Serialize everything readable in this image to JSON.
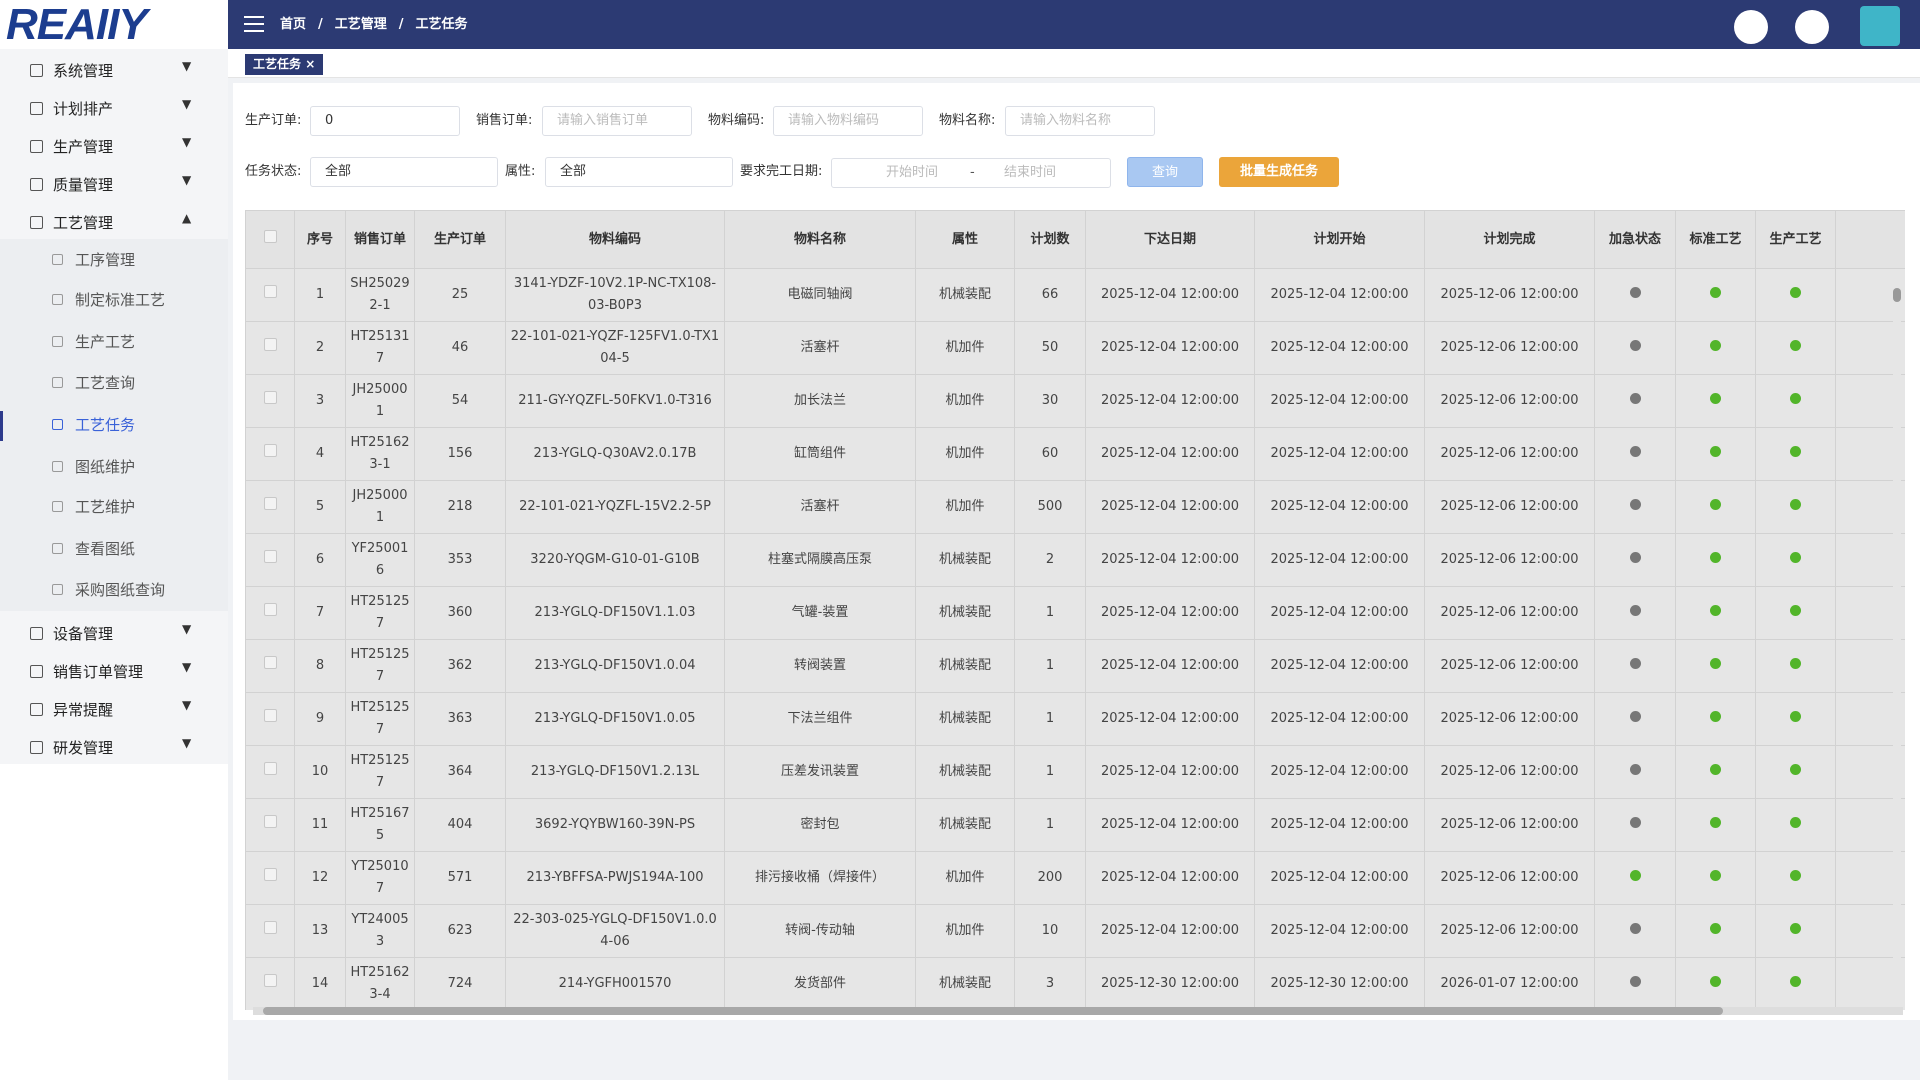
{
  "logo": "REAIIY",
  "menu": [
    "系统管理",
    "计划排产",
    "生产管理",
    "质量管理",
    "工艺管理",
    "设备管理",
    "销售订单管理",
    "异常提醒",
    "研发管理"
  ],
  "submenu": [
    "工序管理",
    "制定标准工艺",
    "生产工艺",
    "工艺查询",
    "工艺任务",
    "图纸维护",
    "工艺维护",
    "查看图纸",
    "采购图纸查询"
  ],
  "breadcrumb": {
    "items": [
      "首页",
      "工艺管理",
      "工艺任务"
    ],
    "separator": "/"
  },
  "tab": {
    "label": "工艺任务",
    "close": "×"
  },
  "filters": {
    "order": {
      "label": "生产订单:",
      "value": "0"
    },
    "sales": {
      "label": "销售订单:",
      "placeholder": "请输入销售订单"
    },
    "code": {
      "label": "物料编码:",
      "placeholder": "请输入物料编码"
    },
    "name": {
      "label": "物料名称:",
      "placeholder": "请输入物料名称"
    },
    "status": {
      "label": "任务状态:",
      "value": "全部"
    },
    "attr": {
      "label": "属性:",
      "value": "全部"
    },
    "date": {
      "label": "要求完工日期:",
      "start": "开始时间",
      "sep": "-",
      "end": "结束时间"
    },
    "search": "查询",
    "batch": "批量生成任务"
  },
  "table": {
    "headers": [
      "序号",
      "销售订单",
      "生产订单",
      "物料编码",
      "物料名称",
      "属性",
      "计划数",
      "下达日期",
      "计划开始",
      "计划完成",
      "加急状态",
      "标准工艺",
      "生产工艺"
    ],
    "rows": [
      [
        1,
        "SH250292-1",
        25,
        "3141-YDZF-10V2.1P-NC-TX108-03-B0P3",
        "电磁同轴阀",
        "机械装配",
        66,
        "2025-12-04 12:00:00",
        "2025-12-04 12:00:00",
        "2025-12-06 12:00:00"
      ],
      [
        2,
        "HT251317",
        46,
        "22-101-021-YQZF-125FV1.0-TX104-5",
        "活塞杆",
        "机加件",
        50,
        "2025-12-04 12:00:00",
        "2025-12-04 12:00:00",
        "2025-12-06 12:00:00"
      ],
      [
        3,
        "JH250001",
        54,
        "211-GY-YQZFL-50FKV1.0-T316",
        "加长法兰",
        "机加件",
        30,
        "2025-12-04 12:00:00",
        "2025-12-04 12:00:00",
        "2025-12-06 12:00:00"
      ],
      [
        4,
        "HT251623-1",
        156,
        "213-YGLQ-Q30AV2.0.17B",
        "缸筒组件",
        "机加件",
        60,
        "2025-12-04 12:00:00",
        "2025-12-04 12:00:00",
        "2025-12-06 12:00:00"
      ],
      [
        5,
        "JH250001",
        218,
        "22-101-021-YQZFL-15V2.2-5P",
        "活塞杆",
        "机加件",
        500,
        "2025-12-04 12:00:00",
        "2025-12-04 12:00:00",
        "2025-12-06 12:00:00"
      ],
      [
        6,
        "YF250016",
        353,
        "3220-YQGM-G10-01-G10B",
        "柱塞式隔膜高压泵",
        "机械装配",
        2,
        "2025-12-04 12:00:00",
        "2025-12-04 12:00:00",
        "2025-12-06 12:00:00"
      ],
      [
        7,
        "HT251257",
        360,
        "213-YGLQ-DF150V1.1.03",
        "气罐-装置",
        "机械装配",
        1,
        "2025-12-04 12:00:00",
        "2025-12-04 12:00:00",
        "2025-12-06 12:00:00"
      ],
      [
        8,
        "HT251257",
        362,
        "213-YGLQ-DF150V1.0.04",
        "转阀装置",
        "机械装配",
        1,
        "2025-12-04 12:00:00",
        "2025-12-04 12:00:00",
        "2025-12-06 12:00:00"
      ],
      [
        9,
        "HT251257",
        363,
        "213-YGLQ-DF150V1.0.05",
        "下法兰组件",
        "机械装配",
        1,
        "2025-12-04 12:00:00",
        "2025-12-04 12:00:00",
        "2025-12-06 12:00:00"
      ],
      [
        10,
        "HT251257",
        364,
        "213-YGLQ-DF150V1.2.13L",
        "压差发讯装置",
        "机械装配",
        1,
        "2025-12-04 12:00:00",
        "2025-12-04 12:00:00",
        "2025-12-06 12:00:00"
      ],
      [
        11,
        "HT251675",
        404,
        "3692-YQYBW160-39N-PS",
        "密封包",
        "机械装配",
        1,
        "2025-12-04 12:00:00",
        "2025-12-04 12:00:00",
        "2025-12-06 12:00:00"
      ],
      [
        12,
        "YT250107",
        571,
        "213-YBFFSA-PWJS194A-100",
        "排污接收桶（焊接件）",
        "机加件",
        200,
        "2025-12-04 12:00:00",
        "2025-12-04 12:00:00",
        "2025-12-06 12:00:00"
      ],
      [
        13,
        "YT240053",
        623,
        "22-303-025-YGLQ-DF150V1.0.04-06",
        "转阀-传动轴",
        "机加件",
        10,
        "2025-12-04 12:00:00",
        "2025-12-04 12:00:00",
        "2025-12-06 12:00:00"
      ],
      [
        14,
        "HT251623-4",
        724,
        "214-YGFH001570",
        "发货部件",
        "机械装配",
        3,
        "2025-12-30 12:00:00",
        "2025-12-30 12:00:00",
        "2026-01-07 12:00:00"
      ]
    ],
    "status_colors": [
      [
        "#777",
        "#52b52a",
        "#52b52a"
      ],
      [
        "#777",
        "#52b52a",
        "#52b52a"
      ],
      [
        "#777",
        "#52b52a",
        "#52b52a"
      ],
      [
        "#777",
        "#52b52a",
        "#52b52a"
      ],
      [
        "#777",
        "#52b52a",
        "#52b52a"
      ],
      [
        "#777",
        "#52b52a",
        "#52b52a"
      ],
      [
        "#777",
        "#52b52a",
        "#52b52a"
      ],
      [
        "#777",
        "#52b52a",
        "#52b52a"
      ],
      [
        "#777",
        "#52b52a",
        "#52b52a"
      ],
      [
        "#777",
        "#52b52a",
        "#52b52a"
      ],
      [
        "#777",
        "#52b52a",
        "#52b52a"
      ],
      [
        "#52b52a",
        "#52b52a",
        "#52b52a"
      ],
      [
        "#777",
        "#52b52a",
        "#52b52a"
      ],
      [
        "#777",
        "#52b52a",
        "#52b52a"
      ]
    ]
  }
}
